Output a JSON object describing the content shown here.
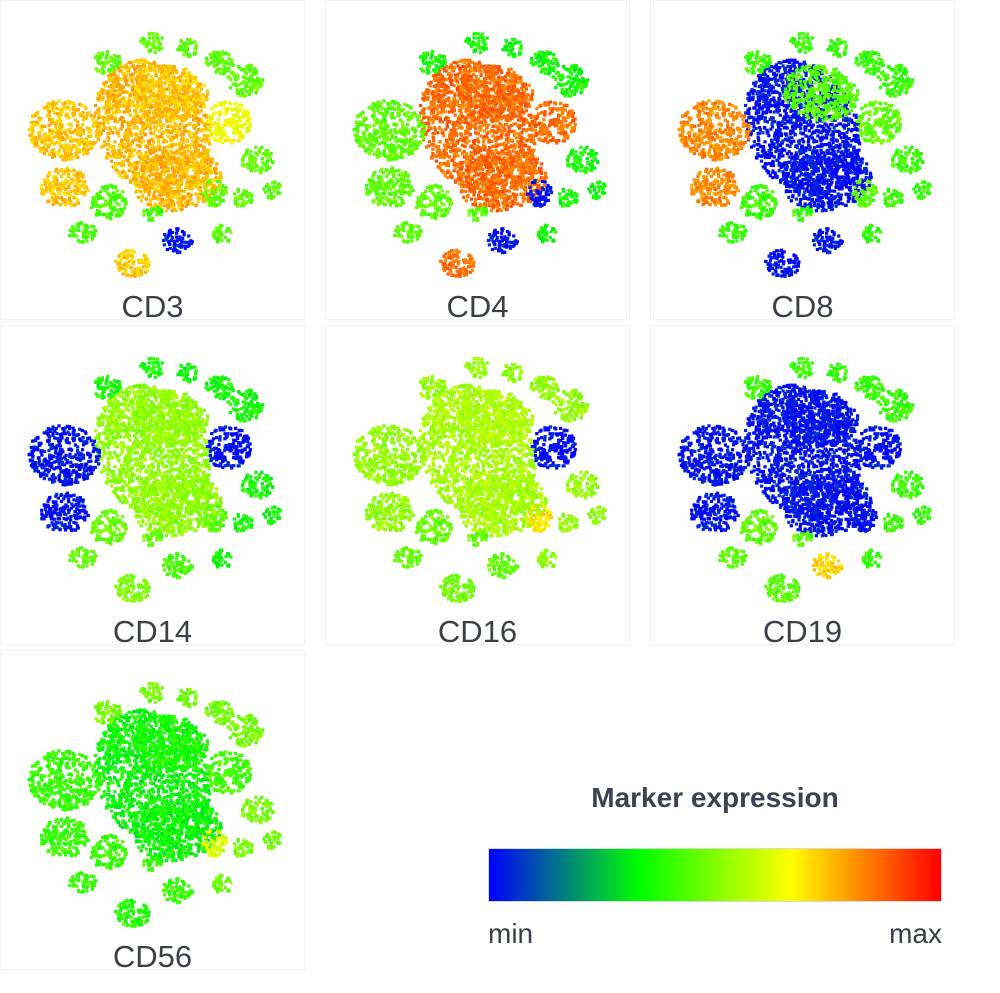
{
  "chart_data": [
    {
      "type": "scatter",
      "title": "CD3",
      "encoding": "marker expression, colour scale min to max",
      "cluster_levels": {
        "t_large": 0.76,
        "t_upper": 0.74,
        "t_left": 0.74,
        "t_right": 0.66,
        "t_lower_left": 0.74,
        "myeloid": 0.42,
        "b_cells": 0.02,
        "nk": 0.46,
        "small": 0.45
      }
    },
    {
      "type": "scatter",
      "title": "CD4",
      "encoding": "marker expression, colour scale min to max",
      "cluster_levels": {
        "t_large": 0.86,
        "t_upper": 0.86,
        "t_left": 0.45,
        "t_right": 0.86,
        "t_lower_left": 0.86,
        "myeloid": 0.45,
        "b_cells": 0.02,
        "nk": 0.02,
        "small": 0.35
      }
    },
    {
      "type": "scatter",
      "title": "CD8",
      "encoding": "marker expression, colour scale min to max",
      "cluster_levels": {
        "t_large": 0.02,
        "t_upper": 0.44,
        "t_left": 0.82,
        "t_right": 0.46,
        "t_lower_left": 0.02,
        "myeloid": 0.4,
        "b_cells": 0.02,
        "nk": 0.45,
        "small": 0.4
      }
    },
    {
      "type": "scatter",
      "title": "CD14",
      "encoding": "marker expression, colour scale min to max",
      "cluster_levels": {
        "t_large": 0.52,
        "t_upper": 0.52,
        "t_left": 0.02,
        "t_right": 0.02,
        "t_lower_left": 0.5,
        "myeloid": 0.46,
        "b_cells": 0.42,
        "nk": 0.45,
        "small": 0.35
      }
    },
    {
      "type": "scatter",
      "title": "CD16",
      "encoding": "marker expression, colour scale min to max",
      "cluster_levels": {
        "t_large": 0.55,
        "t_upper": 0.56,
        "t_left": 0.52,
        "t_right": 0.02,
        "t_lower_left": 0.48,
        "myeloid": 0.46,
        "b_cells": 0.45,
        "nk": 0.7,
        "small": 0.52
      }
    },
    {
      "type": "scatter",
      "title": "CD19",
      "encoding": "marker expression, colour scale min to max",
      "cluster_levels": {
        "t_large": 0.02,
        "t_upper": 0.02,
        "t_left": 0.02,
        "t_right": 0.02,
        "t_lower_left": 0.45,
        "myeloid": 0.45,
        "b_cells": 0.72,
        "nk": 0.02,
        "small": 0.4
      }
    },
    {
      "type": "scatter",
      "title": "CD56",
      "encoding": "marker expression, colour scale min to max",
      "cluster_levels": {
        "t_large": 0.34,
        "t_upper": 0.36,
        "t_left": 0.4,
        "t_right": 0.42,
        "t_lower_left": 0.38,
        "myeloid": 0.4,
        "b_cells": 0.4,
        "nk": 0.62,
        "small": 0.48
      }
    }
  ],
  "legend": {
    "title": "Marker expression",
    "min_label": "min",
    "max_label": "max",
    "colors": [
      "#0000ff",
      "#00ff00",
      "#ffff00",
      "#ff0000"
    ]
  }
}
